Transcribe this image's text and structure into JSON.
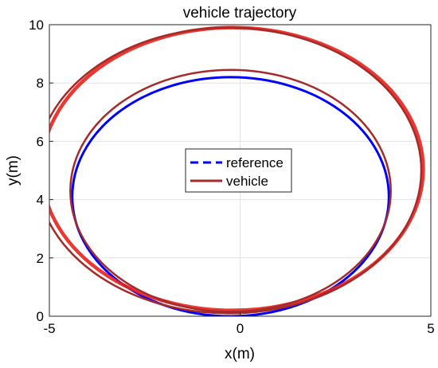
{
  "chart_data": {
    "type": "line",
    "title": "vehicle trajectory",
    "xlabel": "x(m)",
    "ylabel": "y(m)",
    "xlim": [
      -5,
      5
    ],
    "ylim": [
      0,
      10
    ],
    "xticks": [
      -5,
      0,
      5
    ],
    "yticks": [
      0,
      2,
      4,
      6,
      8,
      10
    ],
    "grid": true,
    "legend_position": "center",
    "series": [
      {
        "name": "reference",
        "color": "#0000ff",
        "line_style": "solid",
        "ellipse": {
          "center": [
            -0.25,
            4.1
          ],
          "radius_x": 4.15,
          "radius_y": 4.1
        }
      },
      {
        "name": "vehicle",
        "color": "#a52a2a",
        "line_style": "solid",
        "traces": [
          {
            "center": [
              -0.2,
              5.05
            ],
            "radius_x": 5.0,
            "radius_y": 4.85
          },
          {
            "center": [
              -0.3,
              5.0
            ],
            "radius_x": 5.05,
            "radius_y": 4.9
          },
          {
            "center": [
              -0.25,
              4.3
            ],
            "radius_x": 4.2,
            "radius_y": 4.15
          }
        ]
      }
    ]
  }
}
